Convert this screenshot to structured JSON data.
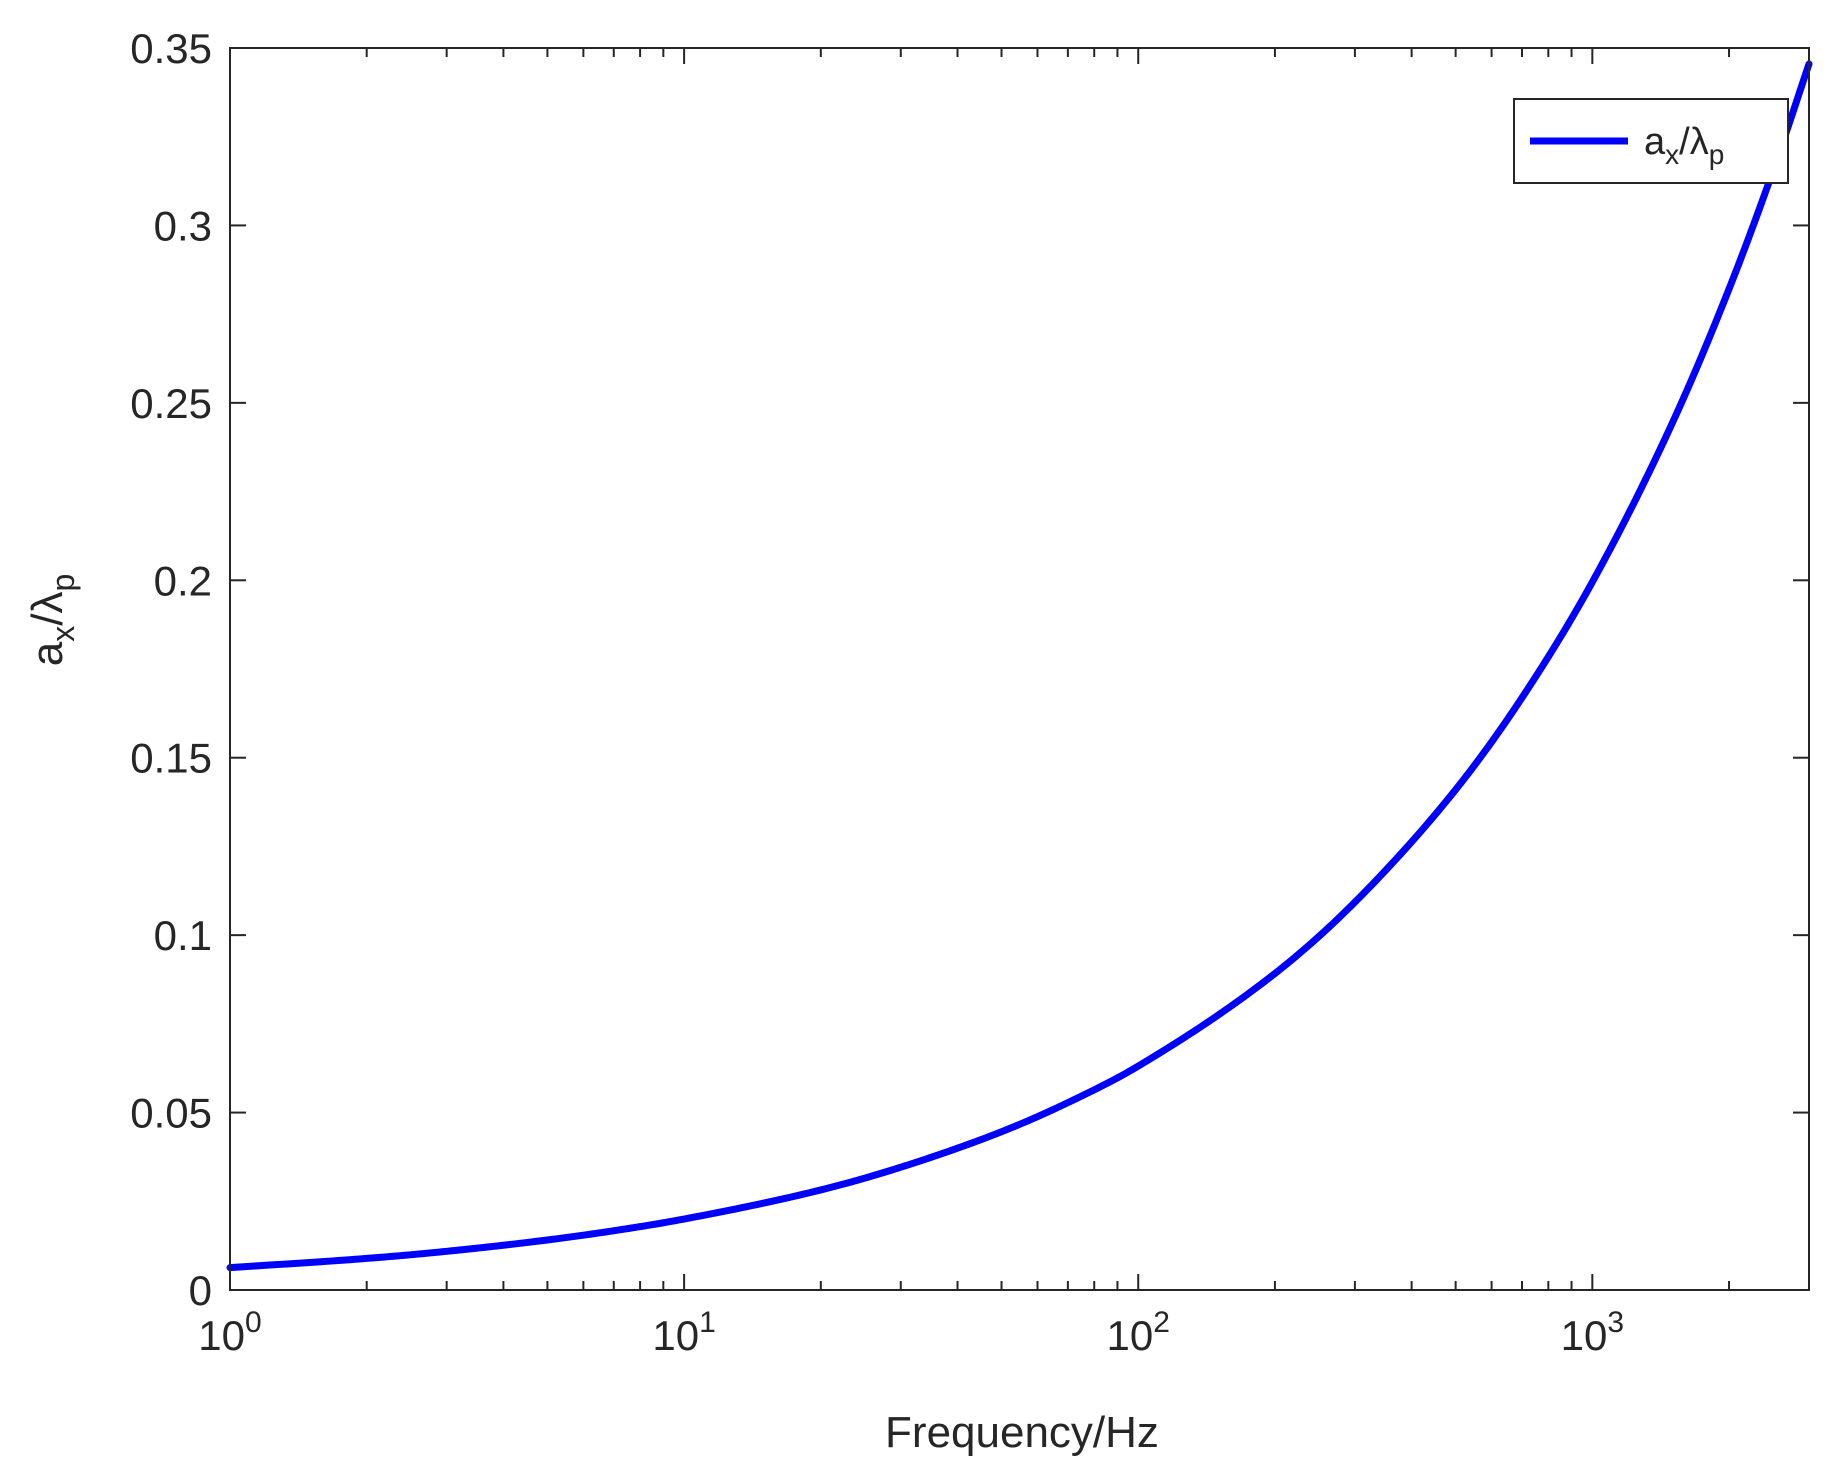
{
  "chart_data": {
    "type": "line",
    "xlabel": "Frequency/Hz",
    "ylabel": {
      "base": "a",
      "sub1": "x",
      "mid": "/λ",
      "sub2": "p"
    },
    "xscale": "log",
    "xlim": [
      1,
      3000
    ],
    "ylim": [
      0,
      0.35
    ],
    "grid": false,
    "legend_position": "top-right",
    "x_ticks": [
      {
        "value": 1,
        "base": "10",
        "exp": "0"
      },
      {
        "value": 10,
        "base": "10",
        "exp": "1"
      },
      {
        "value": 100,
        "base": "10",
        "exp": "2"
      },
      {
        "value": 1000,
        "base": "10",
        "exp": "3"
      }
    ],
    "y_ticks": [
      {
        "value": 0,
        "label": "0"
      },
      {
        "value": 0.05,
        "label": "0.05"
      },
      {
        "value": 0.1,
        "label": "0.1"
      },
      {
        "value": 0.15,
        "label": "0.15"
      },
      {
        "value": 0.2,
        "label": "0.2"
      },
      {
        "value": 0.25,
        "label": "0.25"
      },
      {
        "value": 0.3,
        "label": "0.3"
      },
      {
        "value": 0.35,
        "label": "0.35"
      }
    ],
    "series": [
      {
        "name": {
          "base": "a",
          "sub1": "x",
          "mid": "/λ",
          "sub2": "p"
        },
        "color": "#0000ff",
        "x": [
          1,
          2,
          3,
          5,
          7,
          10,
          20,
          30,
          50,
          70,
          100,
          200,
          300,
          500,
          700,
          1000,
          1500,
          2000,
          2500,
          3000
        ],
        "y": [
          0.0063,
          0.0089,
          0.0109,
          0.0141,
          0.0167,
          0.02,
          0.0282,
          0.0346,
          0.0446,
          0.0528,
          0.0631,
          0.0892,
          0.1093,
          0.141,
          0.1669,
          0.1995,
          0.2443,
          0.2821,
          0.3154,
          0.3455
        ]
      }
    ]
  }
}
